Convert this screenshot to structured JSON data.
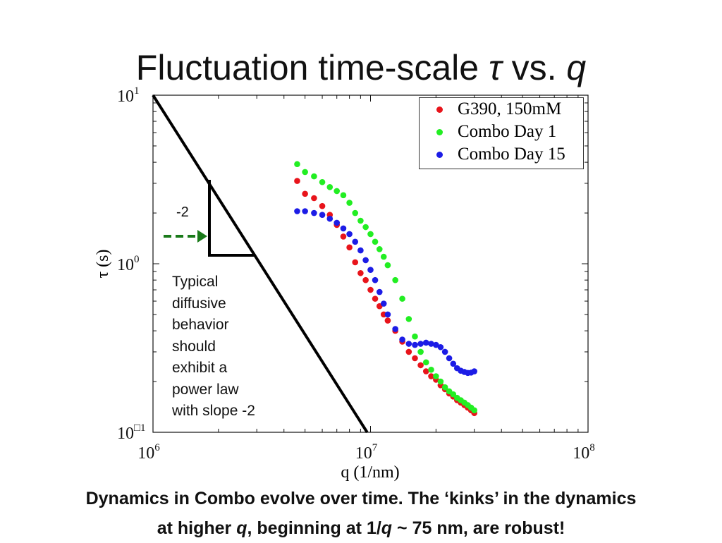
{
  "slide": {
    "title_prefix": "Fluctuation time-scale ",
    "title_tau": "τ",
    "title_mid": " vs. ",
    "title_q": "q",
    "note_lines": [
      "Typical",
      "diffusive",
      "behavior",
      "should",
      "exhibit a",
      "power law",
      "with slope -2"
    ],
    "slope_label": "-2",
    "caption_line1": "Dynamics in Combo evolve over time. The ‘kinks’ in the dynamics",
    "caption_line2_a": "at higher ",
    "caption_line2_q": "q",
    "caption_line2_b": ", beginning at 1/",
    "caption_line2_q2": "q",
    "caption_line2_c": " ~ 75 nm, are robust!"
  },
  "colors": {
    "red": "#e8141b",
    "green": "#22ee22",
    "blue": "#1c1ce6",
    "arrow": "#1a7a1a"
  },
  "chart_data": {
    "type": "scatter",
    "xlabel": "q (1/nm)",
    "ylabel": "τ (s)",
    "xscale": "log",
    "yscale": "log",
    "xlim": [
      1000000,
      100000000
    ],
    "ylim": [
      0.1,
      10
    ],
    "xticks": [
      {
        "base": "10",
        "exp": "6"
      },
      {
        "base": "10",
        "exp": "7"
      },
      {
        "base": "10",
        "exp": "8"
      }
    ],
    "yticks": [
      {
        "base": "10",
        "exp": "1"
      },
      {
        "base": "10",
        "exp": "0"
      },
      {
        "base": "10",
        "exp": "□1"
      }
    ],
    "reference_line": {
      "slope": -2,
      "x": [
        1000000,
        9650000
      ],
      "y": [
        10,
        0.1
      ]
    },
    "series": [
      {
        "name": "G390, 150mM",
        "color": "#e8141b",
        "x": [
          4600000,
          5000000,
          5500000,
          6000000,
          6500000,
          7000000,
          7500000,
          8000000,
          8500000,
          9000000,
          9500000,
          10000000,
          10500000,
          11000000,
          11500000,
          12000000,
          13000000,
          14000000,
          15000000,
          16000000,
          17000000,
          18000000,
          19000000,
          20000000,
          21000000,
          22000000,
          23000000,
          24000000,
          25000000,
          26000000,
          27000000,
          28000000,
          29000000,
          30000000
        ],
        "y": [
          3.1,
          2.6,
          2.45,
          2.2,
          1.95,
          1.7,
          1.45,
          1.25,
          1.02,
          0.88,
          0.8,
          0.7,
          0.62,
          0.56,
          0.5,
          0.46,
          0.4,
          0.345,
          0.3,
          0.275,
          0.25,
          0.23,
          0.215,
          0.205,
          0.19,
          0.18,
          0.17,
          0.163,
          0.155,
          0.15,
          0.145,
          0.14,
          0.135,
          0.13
        ]
      },
      {
        "name": "Combo Day 1",
        "color": "#22ee22",
        "x": [
          4600000,
          5000000,
          5500000,
          6000000,
          6500000,
          7000000,
          7500000,
          8000000,
          8500000,
          9000000,
          9500000,
          10000000,
          10500000,
          11000000,
          11500000,
          12000000,
          13000000,
          14000000,
          15000000,
          16000000,
          17000000,
          18000000,
          19000000,
          20000000,
          21000000,
          22000000,
          23000000,
          24000000,
          25000000,
          26000000,
          27000000,
          28000000,
          29000000,
          30000000
        ],
        "y": [
          3.9,
          3.5,
          3.3,
          3.05,
          2.85,
          2.7,
          2.55,
          2.3,
          2.0,
          1.8,
          1.65,
          1.5,
          1.35,
          1.22,
          1.1,
          0.98,
          0.8,
          0.62,
          0.47,
          0.37,
          0.3,
          0.26,
          0.235,
          0.215,
          0.2,
          0.185,
          0.175,
          0.168,
          0.16,
          0.155,
          0.15,
          0.145,
          0.14,
          0.135
        ]
      },
      {
        "name": "Combo Day 15",
        "color": "#1c1ce6",
        "x": [
          4600000,
          5000000,
          5500000,
          6000000,
          6500000,
          7000000,
          7500000,
          8000000,
          8500000,
          9000000,
          9500000,
          10000000,
          10500000,
          11000000,
          11500000,
          12000000,
          13000000,
          14000000,
          15000000,
          16000000,
          17000000,
          18000000,
          19000000,
          20000000,
          21000000,
          22000000,
          23000000,
          24000000,
          25000000,
          26000000,
          27000000,
          28000000,
          29000000,
          30000000
        ],
        "y": [
          2.05,
          2.05,
          2.0,
          1.95,
          1.85,
          1.75,
          1.62,
          1.5,
          1.35,
          1.2,
          1.05,
          0.92,
          0.8,
          0.68,
          0.58,
          0.5,
          0.41,
          0.355,
          0.335,
          0.33,
          0.335,
          0.34,
          0.335,
          0.33,
          0.32,
          0.3,
          0.275,
          0.255,
          0.24,
          0.232,
          0.228,
          0.225,
          0.226,
          0.23
        ]
      }
    ],
    "annotation": {
      "slope_triangle_label": "-2"
    }
  }
}
